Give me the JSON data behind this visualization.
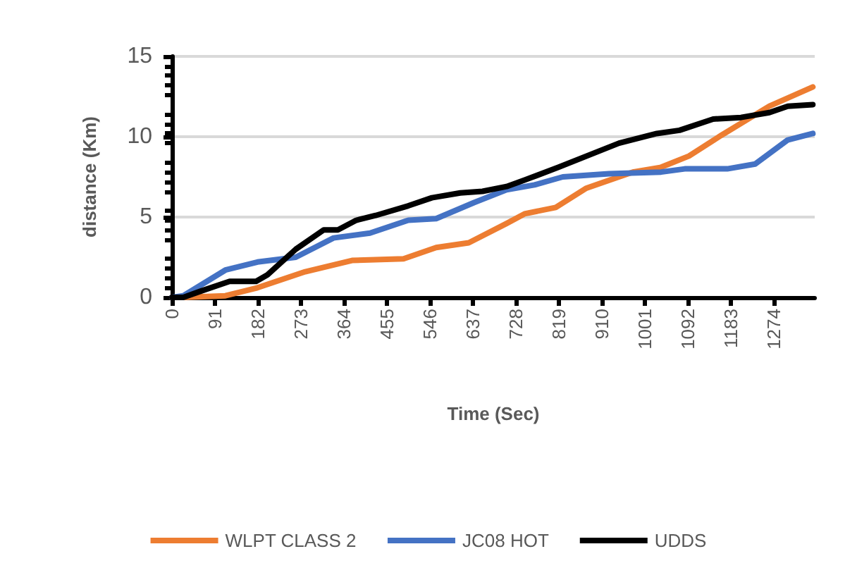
{
  "chart_data": {
    "type": "line",
    "xlabel": "Time (Sec)",
    "ylabel": "distance (Km)",
    "xlim": [
      0,
      1360
    ],
    "xticks": [
      0,
      91,
      182,
      273,
      364,
      455,
      546,
      637,
      728,
      819,
      910,
      1001,
      1092,
      1183,
      1274
    ],
    "ylim": [
      0,
      15
    ],
    "yticks": [
      0,
      5,
      10,
      15
    ],
    "grid": "y",
    "legend": "bottom",
    "marker": "none",
    "line_style": "solid",
    "series": [
      {
        "name": "WLPT CLASS 2",
        "color": "#ed7d31",
        "x": [
          0,
          24,
          113,
          181,
          282,
          381,
          490,
          559,
          628,
          708,
          746,
          812,
          877,
          975,
          1035,
          1094,
          1163,
          1264,
          1356
        ],
        "values": [
          0,
          0,
          0.1,
          0.6,
          1.6,
          2.3,
          2.4,
          3.1,
          3.4,
          4.6,
          5.2,
          5.6,
          6.8,
          7.8,
          8.1,
          8.8,
          10.1,
          11.9,
          13.1
        ]
      },
      {
        "name": "JC08 HOT",
        "color": "#4472c4",
        "x": [
          0,
          24,
          113,
          181,
          262,
          342,
          419,
          500,
          559,
          639,
          708,
          767,
          827,
          925,
          1035,
          1085,
          1175,
          1234,
          1303,
          1356
        ],
        "values": [
          0,
          0.1,
          1.7,
          2.2,
          2.5,
          3.7,
          4.0,
          4.8,
          4.9,
          5.9,
          6.7,
          7.0,
          7.5,
          7.7,
          7.8,
          8.0,
          8.0,
          8.3,
          9.8,
          10.2
        ]
      },
      {
        "name": "UDDS",
        "color": "#000000",
        "x": [
          0,
          24,
          62,
          122,
          178,
          202,
          262,
          321,
          351,
          390,
          431,
          500,
          550,
          610,
          657,
          708,
          746,
          818,
          946,
          1026,
          1074,
          1145,
          1204,
          1264,
          1303,
          1356
        ],
        "values": [
          0,
          0,
          0.4,
          1.0,
          1.0,
          1.4,
          3.0,
          4.2,
          4.2,
          4.8,
          5.1,
          5.7,
          6.2,
          6.5,
          6.6,
          6.9,
          7.3,
          8.1,
          9.6,
          10.2,
          10.4,
          11.1,
          11.2,
          11.5,
          11.9,
          12.0
        ]
      }
    ]
  }
}
